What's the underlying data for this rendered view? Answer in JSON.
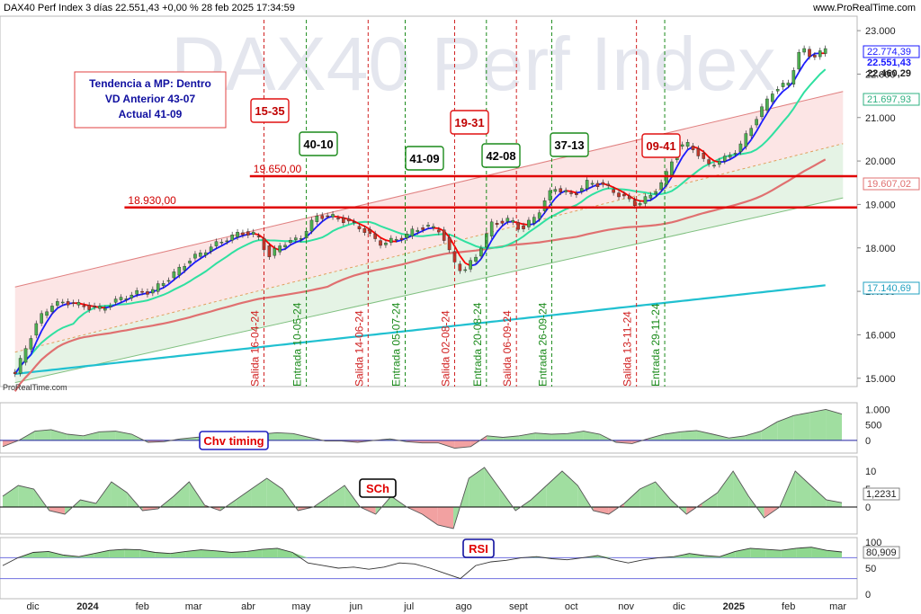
{
  "header": {
    "title": "DAX40 Perf Index 3 días 22.551,43 +0,00 % 28 feb 2025 17:34:59",
    "website": "www.ProRealTime.com"
  },
  "watermark": "DAX40 Perf Index",
  "credit": "ProRealTime.com",
  "info_box": {
    "line1": "Tendencia a MP: Dentro",
    "line2": "VD Anterior 43-07",
    "line3": "Actual 41-09"
  },
  "colors": {
    "price_up": "#4caf50",
    "price_down": "#c0392b",
    "ma_fast_blue": "#1a1aff",
    "ma_fast_red": "#ff0000",
    "ma_mid": "#2fe0a0",
    "ma_slow": "#e07070",
    "ma_long": "#20c0d0",
    "level_line": "#e00000",
    "buy_marker": "#1a8a1a",
    "sell_marker": "#d02020"
  },
  "chart_data": [
    {
      "type": "candlestick",
      "panel": "price",
      "y_ticks": [
        "15.000",
        "16.000",
        "17.000",
        "18.000",
        "19.000",
        "20.000",
        "21.000",
        "22.000",
        "23.000"
      ],
      "ylim": [
        14850,
        23250
      ],
      "x_ticks": [
        "dic",
        "2024",
        "feb",
        "mar",
        "abr",
        "may",
        "jun",
        "jul",
        "ago",
        "sept",
        "oct",
        "nov",
        "dic",
        "2025",
        "feb",
        "mar"
      ],
      "close_points": [
        [
          "2023-11-27",
          15100
        ],
        [
          "2023-12-04",
          15800
        ],
        [
          "2023-12-11",
          16400
        ],
        [
          "2023-12-18",
          16700
        ],
        [
          "2023-12-28",
          16750
        ],
        [
          "2024-01-05",
          16650
        ],
        [
          "2024-01-15",
          16600
        ],
        [
          "2024-01-24",
          16800
        ],
        [
          "2024-02-02",
          16950
        ],
        [
          "2024-02-12",
          17000
        ],
        [
          "2024-02-22",
          17300
        ],
        [
          "2024-03-04",
          17700
        ],
        [
          "2024-03-14",
          17950
        ],
        [
          "2024-03-25",
          18200
        ],
        [
          "2024-04-03",
          18350
        ],
        [
          "2024-04-12",
          18300
        ],
        [
          "2024-04-19",
          17800
        ],
        [
          "2024-04-26",
          18100
        ],
        [
          "2024-05-06",
          18200
        ],
        [
          "2024-05-15",
          18700
        ],
        [
          "2024-05-22",
          18750
        ],
        [
          "2024-06-03",
          18600
        ],
        [
          "2024-06-12",
          18400
        ],
        [
          "2024-06-20",
          18100
        ],
        [
          "2024-07-01",
          18200
        ],
        [
          "2024-07-10",
          18400
        ],
        [
          "2024-07-17",
          18500
        ],
        [
          "2024-07-25",
          18400
        ],
        [
          "2024-08-01",
          17700
        ],
        [
          "2024-08-07",
          17450
        ],
        [
          "2024-08-14",
          17800
        ],
        [
          "2024-08-23",
          18550
        ],
        [
          "2024-09-03",
          18650
        ],
        [
          "2024-09-09",
          18400
        ],
        [
          "2024-09-18",
          18800
        ],
        [
          "2024-09-27",
          19400
        ],
        [
          "2024-10-08",
          19200
        ],
        [
          "2024-10-16",
          19500
        ],
        [
          "2024-10-25",
          19450
        ],
        [
          "2024-11-04",
          19200
        ],
        [
          "2024-11-13",
          19000
        ],
        [
          "2024-11-21",
          19200
        ],
        [
          "2024-11-29",
          19600
        ],
        [
          "2024-12-06",
          20300
        ],
        [
          "2024-12-13",
          20400
        ],
        [
          "2024-12-23",
          19900
        ],
        [
          "2025-01-02",
          20050
        ],
        [
          "2025-01-10",
          20300
        ],
        [
          "2025-01-20",
          21000
        ],
        [
          "2025-01-29",
          21600
        ],
        [
          "2025-02-07",
          21800
        ],
        [
          "2025-02-14",
          22600
        ],
        [
          "2025-02-20",
          22400
        ],
        [
          "2025-02-28",
          22551
        ]
      ],
      "levels": [
        {
          "label": "19.650,00",
          "value": 19650
        },
        {
          "label": "18.930,00",
          "value": 18930
        }
      ],
      "price_labels": [
        {
          "text": "22.774,39",
          "value": 22774
        },
        {
          "text": "22.551,43",
          "value": 22551
        },
        {
          "text": "22.460,29",
          "value": 22460
        },
        {
          "text": "21.697,93",
          "value": 21698
        },
        {
          "text": "19.607,02",
          "value": 19607
        },
        {
          "text": "17.140,69",
          "value": 17141
        }
      ],
      "signals": [
        {
          "label": "Salida 16-04-24",
          "date": "2024-04-16",
          "kind": "sell"
        },
        {
          "label": "Entrada 10-05-24",
          "date": "2024-05-10",
          "kind": "buy"
        },
        {
          "label": "Salida 14-06-24",
          "date": "2024-06-14",
          "kind": "sell"
        },
        {
          "label": "Entrada 05-07-24",
          "date": "2024-07-05",
          "kind": "buy"
        },
        {
          "label": "Salida 02-08-24",
          "date": "2024-08-02",
          "kind": "sell"
        },
        {
          "label": "Entrada 20-08-24",
          "date": "2024-08-20",
          "kind": "buy"
        },
        {
          "label": "Salida 06-09-24",
          "date": "2024-09-06",
          "kind": "sell"
        },
        {
          "label": "Entrada 26-09-24",
          "date": "2024-09-26",
          "kind": "buy"
        },
        {
          "label": "Salida 13-11-24",
          "date": "2024-11-13",
          "kind": "sell"
        },
        {
          "label": "Entrada 29-11-24",
          "date": "2024-11-29",
          "kind": "buy"
        }
      ],
      "week_boxes": [
        {
          "label": "15-35",
          "kind": "sell"
        },
        {
          "label": "40-10",
          "kind": "buy"
        },
        {
          "label": "41-09",
          "kind": "buy"
        },
        {
          "label": "19-31",
          "kind": "sell"
        },
        {
          "label": "42-08",
          "kind": "buy"
        },
        {
          "label": "37-13",
          "kind": "buy"
        },
        {
          "label": "09-41",
          "kind": "sell"
        }
      ]
    },
    {
      "type": "area",
      "panel": "indicator",
      "title": "Chv timing",
      "y_ticks": [
        "1.000",
        "500",
        "0"
      ],
      "ylim": [
        -350,
        1100
      ],
      "values": [
        -200,
        0,
        300,
        350,
        200,
        150,
        280,
        300,
        200,
        -60,
        -40,
        50,
        100,
        150,
        50,
        20,
        200,
        250,
        220,
        100,
        -20,
        -20,
        -60,
        0,
        50,
        -40,
        -80,
        -80,
        -250,
        -200,
        150,
        100,
        150,
        240,
        200,
        220,
        300,
        200,
        -60,
        -100,
        60,
        200,
        280,
        320,
        200,
        80,
        150,
        300,
        600,
        800,
        900,
        1000,
        850
      ]
    },
    {
      "type": "area",
      "panel": "indicator",
      "title": "SCh",
      "y_ticks": [
        "10",
        "5",
        "0"
      ],
      "current_label": "1,2231",
      "ylim": [
        -7,
        13
      ],
      "values": [
        3,
        6,
        5,
        -1,
        -2,
        2,
        1,
        7,
        4,
        -1,
        -0.5,
        3,
        7,
        0.5,
        -1,
        2,
        5,
        8,
        5,
        -1,
        0,
        3,
        6,
        0,
        -2,
        3,
        0,
        -2,
        -5,
        -6,
        8,
        11,
        5,
        -1,
        2,
        6,
        10,
        6,
        -1,
        -2,
        1,
        5,
        7,
        2,
        -2,
        1,
        4,
        10,
        3,
        -3,
        0,
        10,
        6,
        2,
        1.2
      ]
    },
    {
      "type": "line",
      "panel": "indicator",
      "title": "RSI",
      "y_ticks": [
        "100",
        "50",
        "0"
      ],
      "current_label": "80,909",
      "ylim": [
        -5,
        105
      ],
      "values": [
        55,
        70,
        80,
        82,
        75,
        72,
        78,
        84,
        86,
        85,
        80,
        78,
        82,
        85,
        83,
        80,
        82,
        86,
        88,
        80,
        60,
        55,
        50,
        52,
        48,
        52,
        60,
        58,
        50,
        40,
        30,
        55,
        62,
        65,
        70,
        72,
        68,
        66,
        70,
        74,
        66,
        60,
        66,
        70,
        72,
        78,
        74,
        72,
        82,
        88,
        86,
        84,
        88,
        90,
        84,
        81
      ]
    }
  ]
}
